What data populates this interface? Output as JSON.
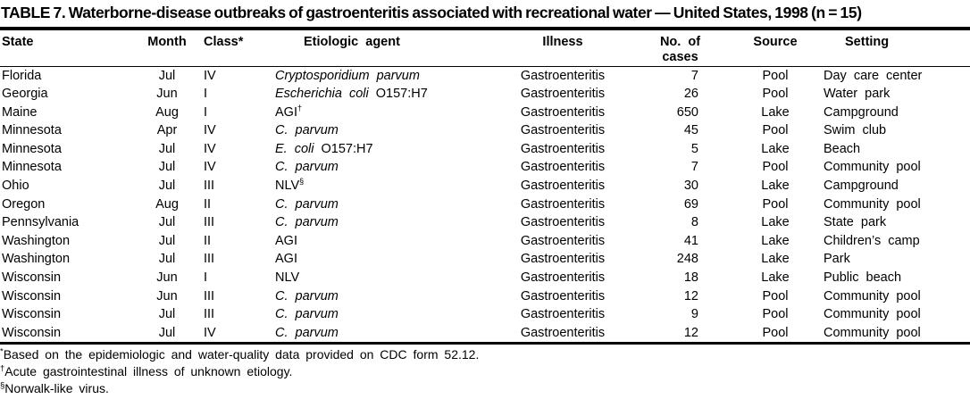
{
  "title": "TABLE 7. Waterborne-disease outbreaks of gastroenteritis associated with recreational water — United States, 1998 (n = 15)",
  "table": {
    "columns": [
      {
        "line1": "State",
        "line2": ""
      },
      {
        "line1": "Month",
        "line2": ""
      },
      {
        "line1": "Class*",
        "line2": ""
      },
      {
        "line1": "Etiologic agent",
        "line2": ""
      },
      {
        "line1": "Illness",
        "line2": ""
      },
      {
        "line1": "No. of",
        "line2": "cases"
      },
      {
        "line1": "Source",
        "line2": ""
      },
      {
        "line1": "Setting",
        "line2": ""
      }
    ],
    "rows": [
      {
        "state": "Florida",
        "month": "Jul",
        "class": "IV",
        "agent": {
          "italic": "Cryptosporidium parvum",
          "plain": "",
          "sup": ""
        },
        "illness": "Gastroenteritis",
        "cases": "7",
        "source": "Pool",
        "setting": "Day care center"
      },
      {
        "state": "Georgia",
        "month": "Jun",
        "class": "I",
        "agent": {
          "italic": "Escherichia coli",
          "plain": " O157:H7",
          "sup": ""
        },
        "illness": "Gastroenteritis",
        "cases": "26",
        "source": "Pool",
        "setting": "Water park"
      },
      {
        "state": "Maine",
        "month": "Aug",
        "class": "I",
        "agent": {
          "italic": "",
          "plain": "AGI",
          "sup": "†"
        },
        "illness": "Gastroenteritis",
        "cases": "650",
        "source": "Lake",
        "setting": "Campground"
      },
      {
        "state": "Minnesota",
        "month": "Apr",
        "class": "IV",
        "agent": {
          "italic": "C. parvum",
          "plain": "",
          "sup": ""
        },
        "illness": "Gastroenteritis",
        "cases": "45",
        "source": "Pool",
        "setting": "Swim club"
      },
      {
        "state": "Minnesota",
        "month": "Jul",
        "class": "IV",
        "agent": {
          "italic": "E. coli",
          "plain": " O157:H7",
          "sup": ""
        },
        "illness": "Gastroenteritis",
        "cases": "5",
        "source": "Lake",
        "setting": "Beach"
      },
      {
        "state": "Minnesota",
        "month": "Jul",
        "class": "IV",
        "agent": {
          "italic": "C. parvum",
          "plain": "",
          "sup": ""
        },
        "illness": "Gastroenteritis",
        "cases": "7",
        "source": "Pool",
        "setting": "Community pool"
      },
      {
        "state": "Ohio",
        "month": "Jul",
        "class": "III",
        "agent": {
          "italic": "",
          "plain": "NLV",
          "sup": "§"
        },
        "illness": "Gastroenteritis",
        "cases": "30",
        "source": "Lake",
        "setting": "Campground"
      },
      {
        "state": "Oregon",
        "month": "Aug",
        "class": "II",
        "agent": {
          "italic": "C. parvum",
          "plain": "",
          "sup": ""
        },
        "illness": "Gastroenteritis",
        "cases": "69",
        "source": "Pool",
        "setting": "Community pool"
      },
      {
        "state": "Pennsylvania",
        "month": "Jul",
        "class": "III",
        "agent": {
          "italic": "C. parvum",
          "plain": "",
          "sup": ""
        },
        "illness": "Gastroenteritis",
        "cases": "8",
        "source": "Lake",
        "setting": "State park"
      },
      {
        "state": "Washington",
        "month": "Jul",
        "class": "II",
        "agent": {
          "italic": "",
          "plain": "AGI",
          "sup": ""
        },
        "illness": "Gastroenteritis",
        "cases": "41",
        "source": "Lake",
        "setting": "Children’s camp"
      },
      {
        "state": "Washington",
        "month": "Jul",
        "class": "III",
        "agent": {
          "italic": "",
          "plain": "AGI",
          "sup": ""
        },
        "illness": "Gastroenteritis",
        "cases": "248",
        "source": "Lake",
        "setting": "Park"
      },
      {
        "state": "Wisconsin",
        "month": "Jun",
        "class": "I",
        "agent": {
          "italic": "",
          "plain": "NLV",
          "sup": ""
        },
        "illness": "Gastroenteritis",
        "cases": "18",
        "source": "Lake",
        "setting": "Public beach"
      },
      {
        "state": "Wisconsin",
        "month": "Jun",
        "class": "III",
        "agent": {
          "italic": "C. parvum",
          "plain": "",
          "sup": ""
        },
        "illness": "Gastroenteritis",
        "cases": "12",
        "source": "Pool",
        "setting": "Community pool"
      },
      {
        "state": "Wisconsin",
        "month": "Jul",
        "class": "III",
        "agent": {
          "italic": "C. parvum",
          "plain": "",
          "sup": ""
        },
        "illness": "Gastroenteritis",
        "cases": "9",
        "source": "Pool",
        "setting": "Community pool"
      },
      {
        "state": "Wisconsin",
        "month": "Jul",
        "class": "IV",
        "agent": {
          "italic": "C. parvum",
          "plain": "",
          "sup": ""
        },
        "illness": "Gastroenteritis",
        "cases": "12",
        "source": "Pool",
        "setting": "Community pool"
      }
    ]
  },
  "footnotes": [
    {
      "marker": "*",
      "text": "Based on the epidemiologic and water-quality data provided on CDC form 52.12."
    },
    {
      "marker": "†",
      "text": "Acute gastrointestinal illness of unknown etiology."
    },
    {
      "marker": "§",
      "text": "Norwalk-like virus."
    }
  ]
}
